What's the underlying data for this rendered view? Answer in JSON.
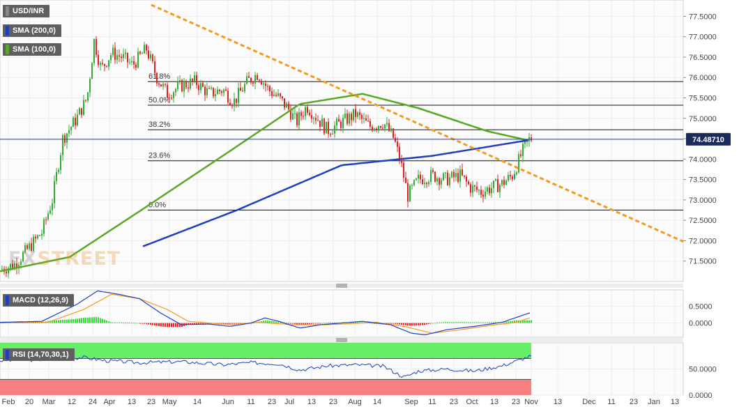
{
  "legend": {
    "symbol": "USD/INR",
    "sma200": "SMA (200,0)",
    "sma100": "SMA (100,0)",
    "macd": "MACD (12,26,9)",
    "rsi": "RSI (14,70,30,1)"
  },
  "watermark": {
    "part1": "FX",
    "part2": "STREET"
  },
  "colors": {
    "up": "#33aa33",
    "down": "#dd2222",
    "sma200": "#1f3fbf",
    "sma100": "#55aa22",
    "trend": "#f39a1e",
    "macd_line": "#1f3fbf",
    "signal_line": "#f39a1e",
    "rsi_over": "#66ee66",
    "rsi_under": "#f77f7f",
    "price_tag": "#1a2a5a"
  },
  "chart_data": [
    {
      "type": "candlestick",
      "title": "USD/INR",
      "ylim": [
        71.0,
        77.9
      ],
      "y_ticks": [
        "77.5000",
        "77.0000",
        "76.5000",
        "76.0000",
        "75.5000",
        "75.0000",
        "74.5000",
        "74.0000",
        "73.5000",
        "73.0000",
        "72.5000",
        "72.0000",
        "71.5000"
      ],
      "x_ticks": [
        "Feb",
        "20",
        "Mar",
        "12",
        "24",
        "Apr",
        "13",
        "23",
        "May",
        "14",
        "Jun",
        "11",
        "23",
        "Jul",
        "13",
        "23",
        "Aug",
        "14",
        "Sep",
        "11",
        "23",
        "Oct",
        "13",
        "23",
        "Nov",
        "13",
        "Dec",
        "11",
        "23",
        "Jan",
        "13"
      ],
      "last_price": "74.48710",
      "fibonacci": [
        {
          "label": "61.8%",
          "value": 75.9
        },
        {
          "label": "50.0%",
          "value": 75.32
        },
        {
          "label": "38.2%",
          "value": 74.72
        },
        {
          "label": "23.6%",
          "value": 73.96
        },
        {
          "label": "0.0%",
          "value": 72.75
        }
      ],
      "trendline": {
        "start": {
          "x": "Apr 23",
          "y": 77.78
        },
        "end": {
          "x": "Jan 13+",
          "y": 71.98
        }
      },
      "sma200_anchor": [
        [
          205,
          71.86
        ],
        [
          340,
          72.75
        ],
        [
          490,
          73.85
        ],
        [
          620,
          74.08
        ],
        [
          760,
          74.47
        ]
      ],
      "sma100_anchor": [
        [
          0,
          71.25
        ],
        [
          100,
          71.6
        ],
        [
          200,
          72.72
        ],
        [
          330,
          74.2
        ],
        [
          430,
          75.35
        ],
        [
          520,
          75.6
        ],
        [
          600,
          75.25
        ],
        [
          700,
          74.68
        ],
        [
          760,
          74.45
        ]
      ],
      "close_anchor": [
        [
          0,
          71.3
        ],
        [
          20,
          71.4
        ],
        [
          40,
          71.8
        ],
        [
          60,
          72.2
        ],
        [
          75,
          73.0
        ],
        [
          90,
          74.5
        ],
        [
          110,
          75.0
        ],
        [
          125,
          75.5
        ],
        [
          135,
          76.9
        ],
        [
          145,
          76.2
        ],
        [
          160,
          76.6
        ],
        [
          175,
          76.5
        ],
        [
          190,
          76.3
        ],
        [
          210,
          76.7
        ],
        [
          225,
          76.0
        ],
        [
          240,
          75.6
        ],
        [
          260,
          75.8
        ],
        [
          280,
          75.9
        ],
        [
          300,
          75.6
        ],
        [
          320,
          75.7
        ],
        [
          335,
          75.4
        ],
        [
          355,
          75.9
        ],
        [
          370,
          76.1
        ],
        [
          385,
          75.7
        ],
        [
          400,
          75.5
        ],
        [
          415,
          75.2
        ],
        [
          425,
          74.9
        ],
        [
          440,
          75.3
        ],
        [
          455,
          75.0
        ],
        [
          470,
          74.7
        ],
        [
          490,
          74.9
        ],
        [
          510,
          75.1
        ],
        [
          530,
          74.8
        ],
        [
          550,
          74.9
        ],
        [
          565,
          74.5
        ],
        [
          575,
          73.9
        ],
        [
          585,
          73.1
        ],
        [
          600,
          73.5
        ],
        [
          620,
          73.6
        ],
        [
          640,
          73.5
        ],
        [
          660,
          73.6
        ],
        [
          675,
          73.3
        ],
        [
          690,
          73.2
        ],
        [
          705,
          73.3
        ],
        [
          720,
          73.4
        ],
        [
          735,
          73.6
        ],
        [
          750,
          74.2
        ],
        [
          760,
          74.5
        ]
      ]
    },
    {
      "type": "line",
      "title": "MACD (12,26,9)",
      "ylim": [
        -0.42,
        0.98
      ],
      "y_ticks": [
        "0.5000",
        "0.0000"
      ]
    },
    {
      "type": "line",
      "title": "RSI (14,70,30,1)",
      "ylim": [
        0,
        100
      ],
      "y_ticks": [
        "50.0000",
        "0.0000"
      ],
      "overbought": 70,
      "oversold": 30
    }
  ]
}
